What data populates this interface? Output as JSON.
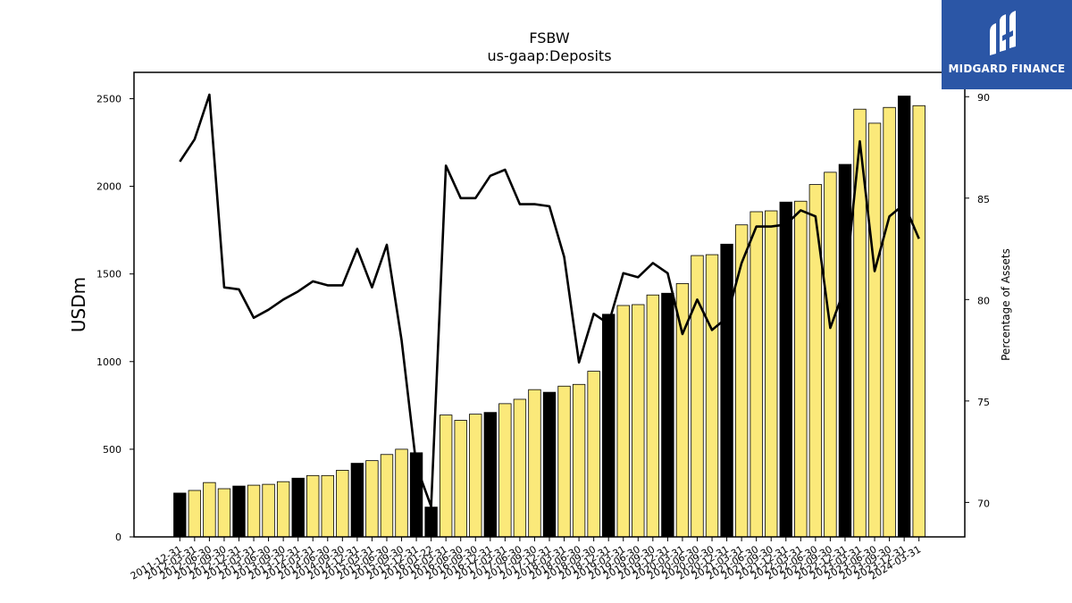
{
  "chart_data": {
    "type": "bar",
    "title": "FSBW",
    "subtitle": "us-gaap:Deposits",
    "ylabel": "USDm",
    "y2label": "Percentage of Assets",
    "ylim": [
      0,
      2650
    ],
    "y2lim": [
      68.3,
      91.2
    ],
    "yticks": [
      0,
      500,
      1000,
      1500,
      2000,
      2500
    ],
    "y2ticks": [
      70,
      75,
      80,
      85,
      90
    ],
    "categories": [
      "2011-12-31",
      "2012-03-31",
      "2012-06-30",
      "2012-09-30",
      "2012-12-31",
      "2013-03-31",
      "2013-06-30",
      "2013-09-30",
      "2013-12-31",
      "2014-03-31",
      "2014-06-30",
      "2014-09-30",
      "2014-12-31",
      "2015-03-31",
      "2015-06-30",
      "2015-09-30",
      "2015-12-31",
      "2016-01-22",
      "2016-03-31",
      "2016-06-30",
      "2016-09-30",
      "2016-12-31",
      "2017-03-31",
      "2017-06-30",
      "2017-09-30",
      "2017-12-31",
      "2018-03-31",
      "2018-06-30",
      "2018-09-30",
      "2018-12-31",
      "2019-03-31",
      "2019-06-30",
      "2019-09-30",
      "2019-12-31",
      "2020-03-31",
      "2020-06-30",
      "2020-09-30",
      "2020-12-31",
      "2021-03-31",
      "2021-06-30",
      "2021-09-30",
      "2021-12-31",
      "2022-03-31",
      "2022-06-30",
      "2022-09-30",
      "2022-12-31",
      "2023-03-31",
      "2023-06-30",
      "2023-09-30",
      "2023-12-31",
      "2024-03-31"
    ],
    "bar_series": {
      "name": "Deposits",
      "values": [
        250,
        265,
        310,
        275,
        290,
        295,
        300,
        315,
        335,
        350,
        350,
        380,
        420,
        435,
        470,
        500,
        480,
        170,
        695,
        665,
        700,
        710,
        760,
        785,
        840,
        825,
        860,
        870,
        945,
        1270,
        1320,
        1325,
        1380,
        1390,
        1445,
        1605,
        1610,
        1670,
        1780,
        1855,
        1860,
        1910,
        1915,
        2010,
        2080,
        2125,
        2440,
        2360,
        2450,
        2515,
        2460
      ]
    },
    "bar_colors": [
      "#000000",
      "#fbe97a",
      "#fbe97a",
      "#fbe97a",
      "#000000",
      "#fbe97a",
      "#fbe97a",
      "#fbe97a",
      "#000000",
      "#fbe97a",
      "#fbe97a",
      "#fbe97a",
      "#000000",
      "#fbe97a",
      "#fbe97a",
      "#fbe97a",
      "#000000",
      "#000000",
      "#fbe97a",
      "#fbe97a",
      "#fbe97a",
      "#000000",
      "#fbe97a",
      "#fbe97a",
      "#fbe97a",
      "#000000",
      "#fbe97a",
      "#fbe97a",
      "#fbe97a",
      "#000000",
      "#fbe97a",
      "#fbe97a",
      "#fbe97a",
      "#000000",
      "#fbe97a",
      "#fbe97a",
      "#fbe97a",
      "#000000",
      "#fbe97a",
      "#fbe97a",
      "#fbe97a",
      "#000000",
      "#fbe97a",
      "#fbe97a",
      "#fbe97a",
      "#000000",
      "#fbe97a",
      "#fbe97a",
      "#fbe97a",
      "#000000",
      "#fbe97a"
    ],
    "line_series": {
      "name": "Percentage of Assets",
      "values": [
        86.8,
        87.9,
        90.1,
        80.6,
        80.5,
        79.1,
        79.5,
        80.0,
        80.4,
        80.9,
        80.7,
        80.7,
        82.5,
        80.6,
        82.7,
        78.0,
        71.8,
        69.8,
        86.6,
        85.0,
        85.0,
        86.1,
        86.4,
        84.7,
        84.7,
        84.6,
        82.1,
        76.9,
        79.3,
        78.8,
        81.3,
        81.1,
        81.8,
        81.3,
        78.3,
        80.0,
        78.5,
        79.1,
        81.8,
        83.6,
        83.6,
        83.7,
        84.4,
        84.1,
        78.6,
        80.6,
        87.8,
        81.4,
        84.1,
        84.7,
        83.0
      ]
    },
    "colors": {
      "bar_highlight": "#000000",
      "bar_normal": "#fbe97a",
      "line": "#000000"
    },
    "grid": false
  },
  "logo": {
    "text": "MIDGARD FINANCE",
    "bg": "#2b56a6"
  }
}
